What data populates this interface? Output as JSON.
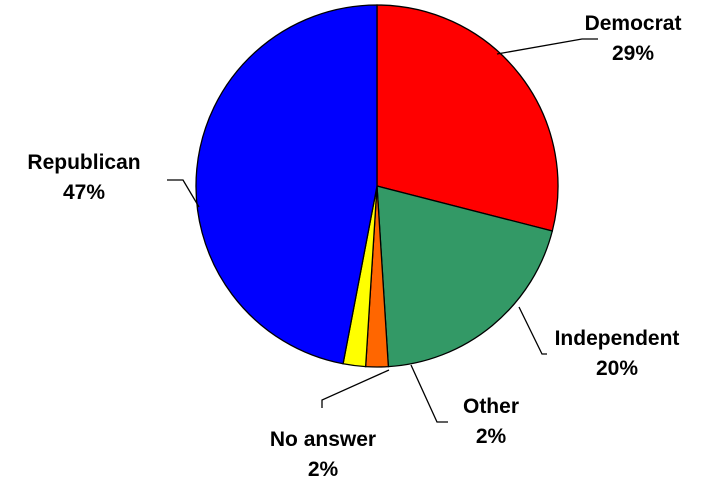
{
  "chart_data": {
    "type": "pie",
    "title": "",
    "start_angle_deg": 0,
    "direction": "clockwise",
    "slices": [
      {
        "name": "Democrat",
        "value": 29,
        "label": "29%",
        "color": "#ff0000"
      },
      {
        "name": "Independent",
        "value": 20,
        "label": "20%",
        "color": "#339966"
      },
      {
        "name": "Other",
        "value": 2,
        "label": "2%",
        "color": "#ff6600"
      },
      {
        "name": "No answer",
        "value": 2,
        "label": "2%",
        "color": "#ffff00"
      },
      {
        "name": "Republican",
        "value": 47,
        "label": "47%",
        "color": "#0000ff"
      }
    ],
    "legend": "none"
  }
}
